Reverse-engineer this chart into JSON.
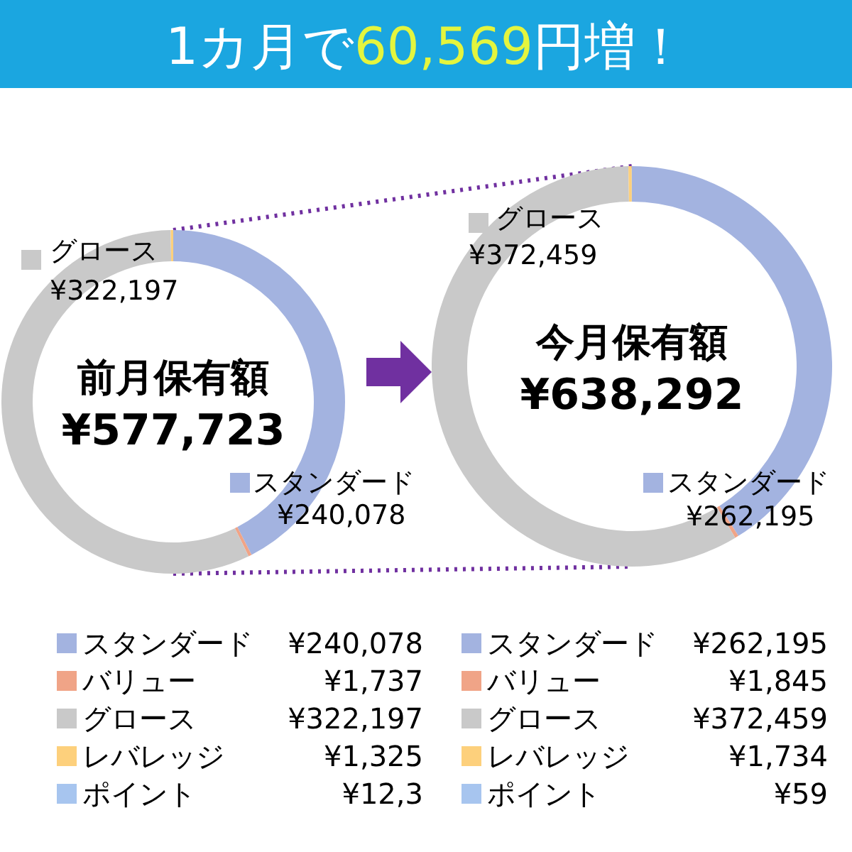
{
  "chart_data": [
    {
      "type": "donut",
      "title": "1カ月で60,569円増！",
      "categories": [
        "スタンダード",
        "バリュー",
        "グロース",
        "レバレッジ",
        "ポイント"
      ],
      "values": [
        240078,
        1737,
        322197,
        1325,
        null
      ],
      "value_labels": [
        "¥240,078",
        "¥1,737",
        "¥322,197",
        "¥1,325",
        "¥12,3"
      ],
      "colors": [
        "#a3b3e0",
        "#f0a487",
        "#c9c9c9",
        "#fdd07c",
        "#a7c5ef"
      ],
      "annotations": [
        "前月保有額",
        "¥577,723"
      ],
      "legend": "bottom"
    },
    {
      "type": "donut",
      "categories": [
        "スタンダード",
        "バリュー",
        "グロース",
        "レバレッジ",
        "ポイント"
      ],
      "values": [
        262195,
        1845,
        372459,
        1734,
        59
      ],
      "value_labels": [
        "¥262,195",
        "¥1,845",
        "¥372,459",
        "¥1,734",
        "¥59"
      ],
      "colors": [
        "#a3b3e0",
        "#f0a487",
        "#c9c9c9",
        "#fdd07c",
        "#a7c5ef"
      ],
      "annotations": [
        "今月保有額",
        "¥638,292"
      ],
      "legend": "bottom"
    }
  ]
}
